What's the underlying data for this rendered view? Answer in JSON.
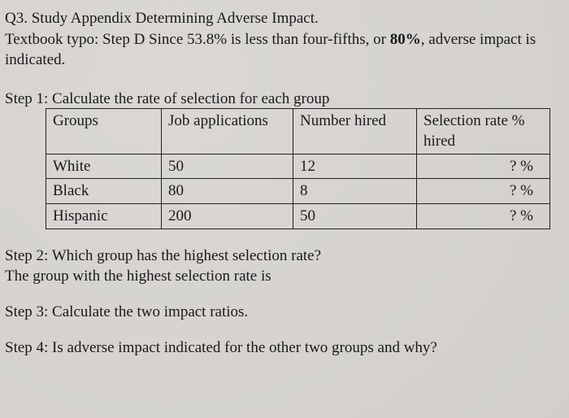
{
  "intro": {
    "line1": "Q3. Study Appendix Determining Adverse Impact.",
    "line2_pre": "Textbook typo: Step D Since 53.8% is less than four-fifths, or ",
    "line2_bold": "80%",
    "line2_post": ", adverse impact is",
    "line3": "indicated."
  },
  "step1_heading": "Step 1: Calculate the rate of selection for each group",
  "table": {
    "headers": {
      "groups": "Groups",
      "apps": "Job applications",
      "hired": "Number hired",
      "rate_l1": "Selection rate %",
      "rate_l2": "hired"
    },
    "rows": [
      {
        "group": "White",
        "apps": "50",
        "hired": "12",
        "rate": "? %"
      },
      {
        "group": "Black",
        "apps": "80",
        "hired": "8",
        "rate": "? %"
      },
      {
        "group": "Hispanic",
        "apps": "200",
        "hired": "50",
        "rate": "? %"
      }
    ]
  },
  "step2": {
    "line1": "Step 2: Which group has the highest selection rate?",
    "line2": "The group with the highest selection rate is"
  },
  "step3": "Step 3: Calculate the two impact ratios.",
  "step4": "Step 4: Is adverse impact indicated for the other two groups and why?",
  "colors": {
    "background": "#d8d5d2",
    "text": "#1a1a1a",
    "border": "#222222"
  },
  "fontsize_pt": 14
}
